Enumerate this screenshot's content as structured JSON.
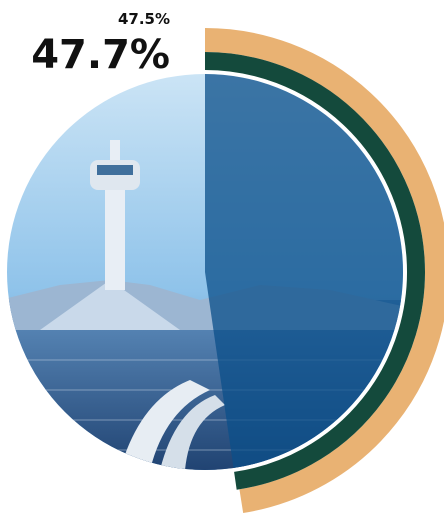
{
  "chart_data": {
    "type": "radial",
    "values": [
      47.5,
      47.7
    ],
    "value_labels": [
      "47.5%",
      "47.7%"
    ],
    "colors": [
      "#e9b273",
      "#144a3c"
    ],
    "overlay_color": "#0b4f8a"
  }
}
